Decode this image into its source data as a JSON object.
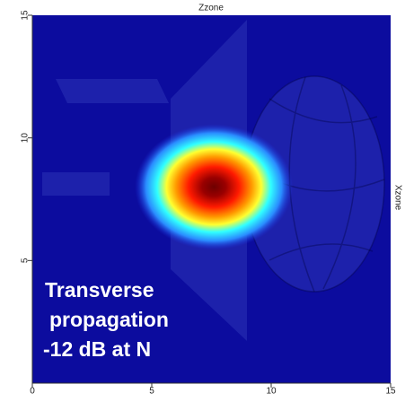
{
  "chart_data": {
    "type": "heatmap",
    "title": "Zzone",
    "right_label": "Xzone",
    "annotation": [
      "Transverse",
      "propagation",
      "-12 dB at N"
    ],
    "peak": {
      "x": 7.6,
      "y": 8.0
    },
    "xlim": [
      0,
      15
    ],
    "xticks": [
      0,
      5,
      10,
      15
    ],
    "ylim": [
      0,
      15
    ],
    "yticks": [
      5,
      10,
      15
    ],
    "background": "#0c0c9e"
  }
}
